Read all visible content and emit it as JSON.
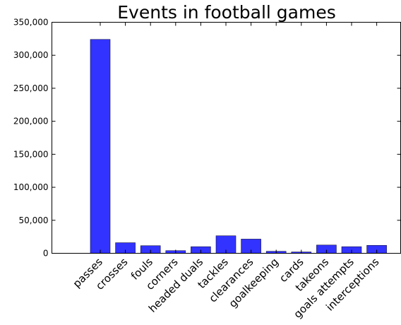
{
  "chart_data": {
    "type": "bar",
    "title": "Events in football games",
    "xlabel": "",
    "ylabel": "",
    "categories": [
      "passes",
      "crosses",
      "fouls",
      "corners",
      "headed duals",
      "tackles",
      "clearances",
      "goalkeeping",
      "cards",
      "takeons",
      "goals attempts",
      "interceptions"
    ],
    "values": [
      324000,
      16000,
      11500,
      4000,
      10000,
      26500,
      21500,
      3000,
      2000,
      12500,
      10000,
      12000
    ],
    "ylim": [
      0,
      350000
    ],
    "yticks": [
      0,
      50000,
      100000,
      150000,
      200000,
      250000,
      300000,
      350000
    ],
    "ytick_labels": [
      "0",
      "50,000",
      "100,000",
      "150,000",
      "200,000",
      "250,000",
      "300,000",
      "350,000"
    ],
    "bar_color": "#3333ff",
    "grid": false
  }
}
